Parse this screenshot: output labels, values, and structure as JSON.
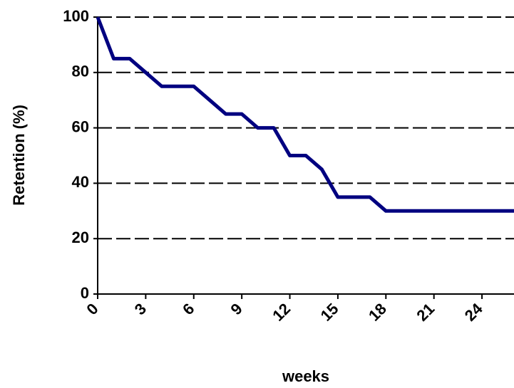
{
  "chart_data": {
    "type": "line",
    "x_label": "weeks",
    "y_label": "Retention (%)",
    "x": [
      0,
      1,
      2,
      3,
      4,
      5,
      6,
      7,
      8,
      9,
      10,
      11,
      12,
      13,
      14,
      15,
      16,
      17,
      18,
      19,
      20,
      21,
      22,
      23,
      24,
      25,
      26
    ],
    "series": [
      {
        "name": "Retention",
        "color": "#000080",
        "values": [
          100,
          85,
          85,
          80,
          75,
          75,
          75,
          70,
          65,
          65,
          60,
          60,
          50,
          50,
          45,
          35,
          35,
          35,
          30,
          30,
          30,
          30,
          30,
          30,
          30,
          30,
          30
        ]
      }
    ],
    "xlim": [
      0,
      26
    ],
    "xticks": [
      0,
      3,
      6,
      9,
      12,
      15,
      18,
      21,
      24
    ],
    "ylim": [
      0,
      100
    ],
    "yticks": [
      0,
      20,
      40,
      60,
      80,
      100
    ],
    "grid": true
  }
}
